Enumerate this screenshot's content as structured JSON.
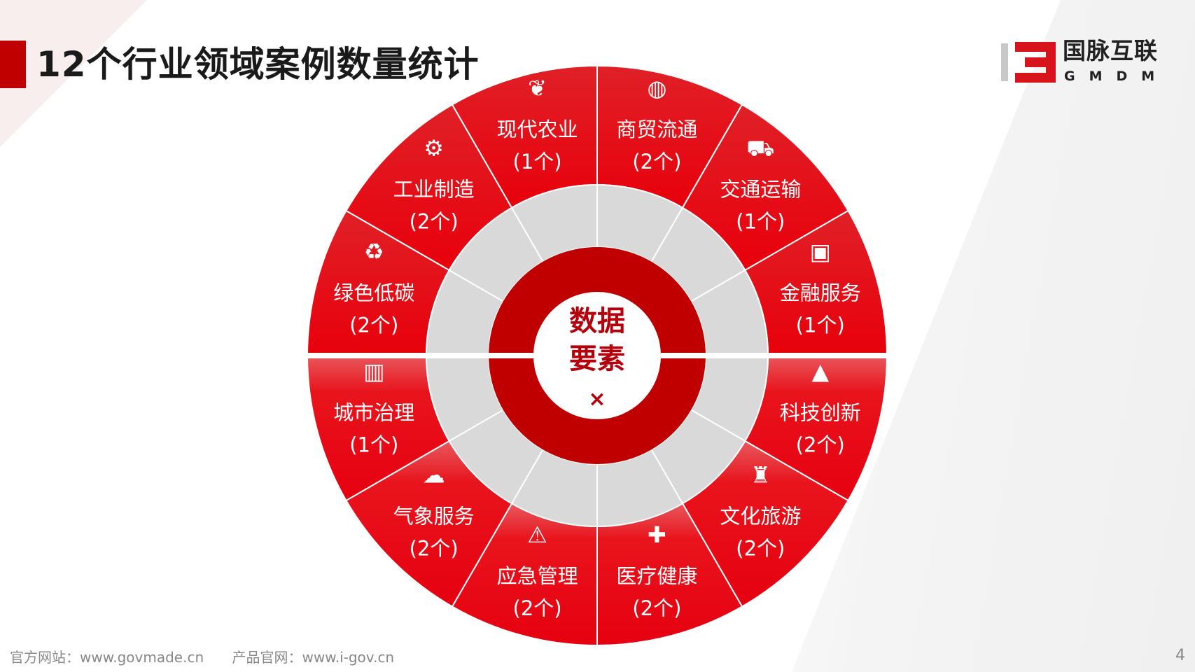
{
  "title": "12个行业领域案例数量统计",
  "logo": {
    "cn": "国脉互联",
    "en": "GMDM"
  },
  "center": {
    "line1": "数据",
    "line2": "要素",
    "symbol": "×"
  },
  "colors": {
    "red": "#e8141c",
    "dark_red": "#c00000",
    "gray": "#d9d9d9",
    "text": "#ffffff"
  },
  "segments": [
    {
      "name": "科技创新",
      "count": "(2个)",
      "icon": "rocket-icon"
    },
    {
      "name": "文化旅游",
      "count": "(2个)",
      "icon": "tower-icon"
    },
    {
      "name": "医疗健康",
      "count": "(2个)",
      "icon": "medical-icon"
    },
    {
      "name": "应急管理",
      "count": "(2个)",
      "icon": "alarm-light-icon"
    },
    {
      "name": "气象服务",
      "count": "(2个)",
      "icon": "weather-icon"
    },
    {
      "name": "城市治理",
      "count": "(1个)",
      "icon": "city-buildings-icon"
    },
    {
      "name": "绿色低碳",
      "count": "(2个)",
      "icon": "recycle-bag-icon"
    },
    {
      "name": "工业制造",
      "count": "(2个)",
      "icon": "gear-wrench-icon"
    },
    {
      "name": "现代农业",
      "count": "(1个)",
      "icon": "wheat-icon"
    },
    {
      "name": "商贸流通",
      "count": "(2个)",
      "icon": "globe-icon"
    },
    {
      "name": "交通运输",
      "count": "(1个)",
      "icon": "truck-icon"
    },
    {
      "name": "金融服务",
      "count": "(1个)",
      "icon": "wallet-icon"
    }
  ],
  "footer": {
    "site": "官方网站：www.govmade.cn",
    "product": "产品官网：www.i-gov.cn",
    "page": "4"
  }
}
